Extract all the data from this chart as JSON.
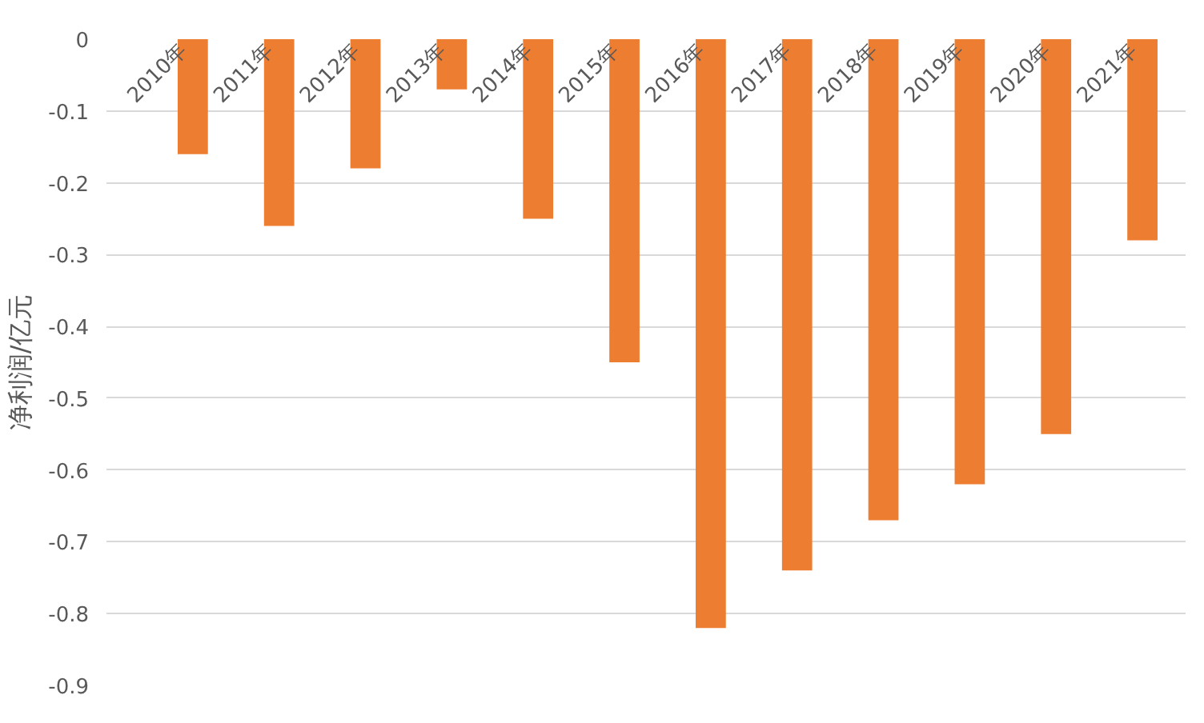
{
  "chart_data": {
    "type": "bar",
    "ylabel": "净利润/亿元",
    "categories": [
      "2010年",
      "2011年",
      "2012年",
      "2013年",
      "2014年",
      "2015年",
      "2016年",
      "2017年",
      "2018年",
      "2019年",
      "2020年",
      "2021年"
    ],
    "values": [
      -0.16,
      -0.26,
      -0.18,
      -0.07,
      -0.25,
      -0.45,
      -0.82,
      -0.74,
      -0.67,
      -0.62,
      -0.55,
      -0.28
    ],
    "color": "#ed7d31",
    "ylim": [
      -0.9,
      0
    ],
    "yticks": [
      0,
      -0.1,
      -0.2,
      -0.3,
      -0.4,
      -0.5,
      -0.6,
      -0.7,
      -0.8,
      -0.9
    ],
    "grid": "y"
  }
}
